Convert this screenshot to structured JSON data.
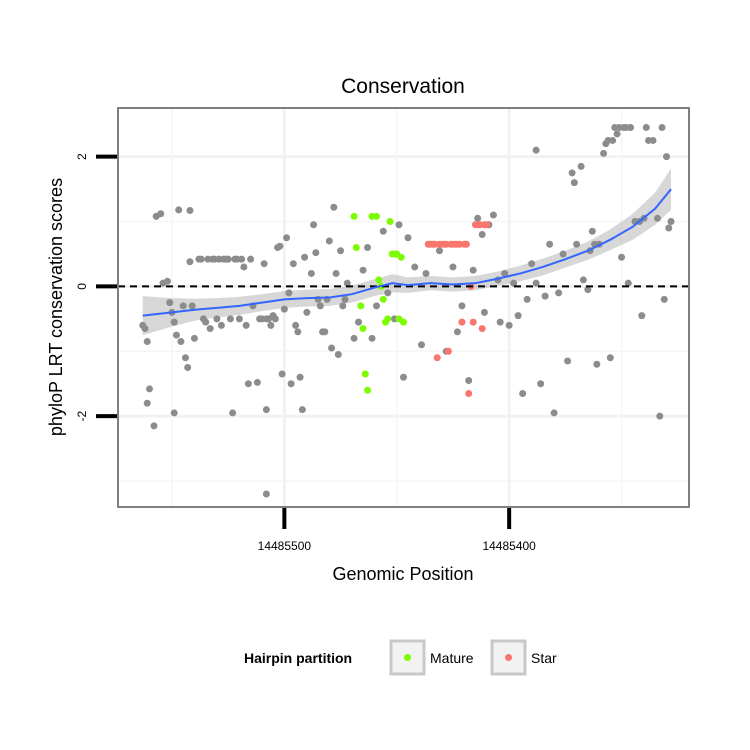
{
  "chart_data": {
    "type": "scatter",
    "title": "Conservation",
    "xlabel": "Genomic Position",
    "ylabel": "phyloP LRT conservation scores",
    "x_reversed": true,
    "xlim": [
      14485574,
      14485320
    ],
    "ylim": [
      -3.4,
      2.75
    ],
    "x_ticks": [
      14485500,
      14485400
    ],
    "x_tick_labels": [
      "14485500",
      "14485400"
    ],
    "y_ticks": [
      -2,
      0,
      2
    ],
    "y_tick_labels": [
      "-2",
      "0",
      "2"
    ],
    "grid": true,
    "reference_line": {
      "y": 0,
      "style": "dashed"
    },
    "legend": {
      "title": "Hairpin partition",
      "position": "bottom",
      "entries": [
        {
          "label": "Mature",
          "color": "#7cfc00"
        },
        {
          "label": "Star",
          "color": "#f8766d"
        }
      ]
    },
    "colors": {
      "other": "#8c8c8c",
      "mature": "#7cfc00",
      "star": "#f8766d",
      "smooth": "#3366ff",
      "ribbon": "#bdbdbd"
    },
    "series": [
      {
        "group": "other",
        "points": [
          [
            14485563,
            -0.6
          ],
          [
            14485562,
            -0.65
          ],
          [
            14485561,
            -0.85
          ],
          [
            14485561,
            -1.8
          ],
          [
            14485560,
            -1.58
          ],
          [
            14485558,
            -2.15
          ],
          [
            14485557,
            1.08
          ],
          [
            14485555,
            1.12
          ],
          [
            14485554,
            0.05
          ],
          [
            14485552,
            0.08
          ],
          [
            14485551,
            -0.25
          ],
          [
            14485550,
            -0.4
          ],
          [
            14485549,
            -1.95
          ],
          [
            14485549,
            -0.55
          ],
          [
            14485548,
            -0.75
          ],
          [
            14485547,
            1.18
          ],
          [
            14485546,
            -0.85
          ],
          [
            14485545,
            -0.3
          ],
          [
            14485544,
            -1.1
          ],
          [
            14485543,
            -1.25
          ],
          [
            14485542,
            0.38
          ],
          [
            14485542,
            1.17
          ],
          [
            14485541,
            -0.3
          ],
          [
            14485540,
            -0.8
          ],
          [
            14485538,
            0.42
          ],
          [
            14485537,
            0.42
          ],
          [
            14485536,
            -0.5
          ],
          [
            14485535,
            -0.55
          ],
          [
            14485534,
            0.42
          ],
          [
            14485533,
            -0.65
          ],
          [
            14485532,
            0.42
          ],
          [
            14485531,
            0.42
          ],
          [
            14485530,
            -0.5
          ],
          [
            14485529,
            0.42
          ],
          [
            14485528,
            -0.6
          ],
          [
            14485527,
            0.42
          ],
          [
            14485526,
            0.42
          ],
          [
            14485525,
            0.42
          ],
          [
            14485524,
            -0.5
          ],
          [
            14485523,
            -1.95
          ],
          [
            14485522,
            0.42
          ],
          [
            14485521,
            0.42
          ],
          [
            14485520,
            -0.5
          ],
          [
            14485519,
            0.42
          ],
          [
            14485518,
            0.3
          ],
          [
            14485517,
            -0.6
          ],
          [
            14485516,
            -1.5
          ],
          [
            14485515,
            0.42
          ],
          [
            14485514,
            -0.3
          ],
          [
            14485512,
            -1.48
          ],
          [
            14485511,
            -0.5
          ],
          [
            14485510,
            -0.5
          ],
          [
            14485509,
            0.35
          ],
          [
            14485508,
            -0.5
          ],
          [
            14485507,
            -0.5
          ],
          [
            14485506,
            -0.6
          ],
          [
            14485505,
            -0.45
          ],
          [
            14485504,
            -0.5
          ],
          [
            14485503,
            0.6
          ],
          [
            14485502,
            0.62
          ],
          [
            14485501,
            -1.35
          ],
          [
            14485500,
            -0.35
          ],
          [
            14485499,
            0.75
          ],
          [
            14485498,
            -0.1
          ],
          [
            14485497,
            -1.5
          ],
          [
            14485496,
            0.35
          ],
          [
            14485495,
            -0.6
          ],
          [
            14485494,
            -0.7
          ],
          [
            14485493,
            -1.4
          ],
          [
            14485492,
            -1.9
          ],
          [
            14485491,
            0.45
          ],
          [
            14485490,
            -0.4
          ],
          [
            14485488,
            0.2
          ],
          [
            14485487,
            0.95
          ],
          [
            14485486,
            0.52
          ],
          [
            14485485,
            -0.2
          ],
          [
            14485484,
            -0.3
          ],
          [
            14485483,
            -0.7
          ],
          [
            14485482,
            -0.7
          ],
          [
            14485481,
            -0.2
          ],
          [
            14485480,
            0.7
          ],
          [
            14485479,
            -0.95
          ],
          [
            14485478,
            1.22
          ],
          [
            14485477,
            0.2
          ],
          [
            14485476,
            -1.05
          ],
          [
            14485475,
            0.55
          ],
          [
            14485474,
            -0.3
          ],
          [
            14485473,
            -0.2
          ],
          [
            14485472,
            0.05
          ],
          [
            14485469,
            -0.8
          ],
          [
            14485467,
            -0.55
          ],
          [
            14485465,
            0.25
          ],
          [
            14485463,
            0.6
          ],
          [
            14485461,
            -0.8
          ],
          [
            14485459,
            -0.3
          ],
          [
            14485456,
            0.85
          ],
          [
            14485454,
            -0.1
          ],
          [
            14485451,
            -0.5
          ],
          [
            14485449,
            0.95
          ],
          [
            14485447,
            -1.4
          ],
          [
            14485445,
            0.75
          ],
          [
            14485442,
            0.3
          ],
          [
            14485439,
            -0.9
          ],
          [
            14485437,
            0.2
          ],
          [
            14485431,
            0.55
          ],
          [
            14485428,
            -1.0
          ],
          [
            14485425,
            0.3
          ],
          [
            14485423,
            -0.7
          ],
          [
            14485421,
            -0.3
          ],
          [
            14485418,
            -1.45
          ],
          [
            14485416,
            0.25
          ],
          [
            14485414,
            1.05
          ],
          [
            14485412,
            0.8
          ],
          [
            14485411,
            -0.4
          ],
          [
            14485409,
            0.95
          ],
          [
            14485407,
            1.1
          ],
          [
            14485405,
            0.1
          ],
          [
            14485404,
            -0.55
          ],
          [
            14485402,
            0.2
          ],
          [
            14485400,
            -0.6
          ],
          [
            14485398,
            0.05
          ],
          [
            14485396,
            -0.45
          ],
          [
            14485394,
            -1.65
          ],
          [
            14485392,
            -0.2
          ],
          [
            14485390,
            0.35
          ],
          [
            14485388,
            0.05
          ],
          [
            14485386,
            -1.5
          ],
          [
            14485384,
            -0.15
          ],
          [
            14485382,
            0.65
          ],
          [
            14485380,
            -1.95
          ],
          [
            14485378,
            -0.1
          ],
          [
            14485376,
            0.5
          ],
          [
            14485374,
            -1.15
          ],
          [
            14485372,
            1.75
          ],
          [
            14485371,
            1.6
          ],
          [
            14485370,
            0.65
          ],
          [
            14485368,
            1.85
          ],
          [
            14485367,
            0.1
          ],
          [
            14485365,
            -0.05
          ],
          [
            14485364,
            0.55
          ],
          [
            14485363,
            0.85
          ],
          [
            14485362,
            0.65
          ],
          [
            14485361,
            -1.2
          ],
          [
            14485360,
            0.65
          ],
          [
            14485358,
            2.05
          ],
          [
            14485357,
            2.2
          ],
          [
            14485356,
            2.25
          ],
          [
            14485355,
            -1.1
          ],
          [
            14485354,
            2.25
          ],
          [
            14485353,
            2.45
          ],
          [
            14485352,
            2.35
          ],
          [
            14485351,
            2.45
          ],
          [
            14485350,
            0.45
          ],
          [
            14485349,
            2.45
          ],
          [
            14485348,
            2.45
          ],
          [
            14485347,
            0.05
          ],
          [
            14485346,
            2.45
          ],
          [
            14485344,
            1.0
          ],
          [
            14485342,
            1.0
          ],
          [
            14485341,
            -0.45
          ],
          [
            14485340,
            1.05
          ],
          [
            14485339,
            2.45
          ],
          [
            14485338,
            2.25
          ],
          [
            14485336,
            2.25
          ],
          [
            14485334,
            1.05
          ],
          [
            14485333,
            -2.0
          ],
          [
            14485332,
            2.45
          ],
          [
            14485331,
            -0.2
          ],
          [
            14485330,
            2.0
          ],
          [
            14485329,
            0.9
          ],
          [
            14485328,
            1.0
          ],
          [
            14485508,
            -3.2
          ],
          [
            14485508,
            -1.9
          ],
          [
            14485388,
            2.1
          ]
        ]
      },
      {
        "group": "mature",
        "points": [
          [
            14485469,
            1.08
          ],
          [
            14485468,
            0.6
          ],
          [
            14485466,
            -0.3
          ],
          [
            14485465,
            -0.65
          ],
          [
            14485464,
            -1.35
          ],
          [
            14485463,
            -1.6
          ],
          [
            14485461,
            1.08
          ],
          [
            14485459,
            1.08
          ],
          [
            14485458,
            0.1
          ],
          [
            14485457,
            0.0
          ],
          [
            14485456,
            -0.2
          ],
          [
            14485455,
            -0.55
          ],
          [
            14485454,
            -0.5
          ],
          [
            14485453,
            1.0
          ],
          [
            14485452,
            0.5
          ],
          [
            14485451,
            0.5
          ],
          [
            14485450,
            0.5
          ],
          [
            14485449,
            -0.5
          ],
          [
            14485448,
            0.45
          ],
          [
            14485447,
            -0.55
          ]
        ]
      },
      {
        "group": "star",
        "points": [
          [
            14485436,
            0.65
          ],
          [
            14485435,
            0.65
          ],
          [
            14485434,
            0.65
          ],
          [
            14485433,
            0.65
          ],
          [
            14485432,
            -1.1
          ],
          [
            14485431,
            0.65
          ],
          [
            14485430,
            0.65
          ],
          [
            14485429,
            0.65
          ],
          [
            14485428,
            0.65
          ],
          [
            14485427,
            -1.0
          ],
          [
            14485426,
            0.65
          ],
          [
            14485425,
            0.65
          ],
          [
            14485424,
            0.65
          ],
          [
            14485423,
            0.65
          ],
          [
            14485422,
            0.65
          ],
          [
            14485421,
            -0.55
          ],
          [
            14485420,
            0.65
          ],
          [
            14485419,
            0.65
          ],
          [
            14485418,
            -1.65
          ],
          [
            14485417,
            0.0
          ],
          [
            14485416,
            -0.55
          ],
          [
            14485415,
            0.95
          ],
          [
            14485414,
            0.95
          ],
          [
            14485413,
            0.95
          ],
          [
            14485412,
            -0.65
          ],
          [
            14485411,
            0.95
          ],
          [
            14485410,
            0.95
          ]
        ]
      }
    ],
    "smooth_fit": {
      "x": [
        14485563,
        14485550,
        14485540,
        14485530,
        14485520,
        14485510,
        14485500,
        14485490,
        14485480,
        14485470,
        14485460,
        14485452,
        14485445,
        14485435,
        14485425,
        14485415,
        14485405,
        14485395,
        14485385,
        14485375,
        14485365,
        14485355,
        14485345,
        14485335,
        14485328
      ],
      "y": [
        -0.45,
        -0.4,
        -0.36,
        -0.33,
        -0.3,
        -0.25,
        -0.2,
        -0.18,
        -0.17,
        -0.12,
        -0.02,
        0.05,
        0.02,
        0.05,
        0.03,
        0.05,
        0.12,
        0.2,
        0.3,
        0.42,
        0.55,
        0.72,
        0.92,
        1.2,
        1.5
      ],
      "ribbon_halfwidth": [
        0.3,
        0.22,
        0.17,
        0.15,
        0.14,
        0.13,
        0.13,
        0.13,
        0.13,
        0.13,
        0.13,
        0.14,
        0.12,
        0.11,
        0.11,
        0.11,
        0.11,
        0.12,
        0.13,
        0.13,
        0.14,
        0.16,
        0.2,
        0.25,
        0.32
      ]
    }
  }
}
